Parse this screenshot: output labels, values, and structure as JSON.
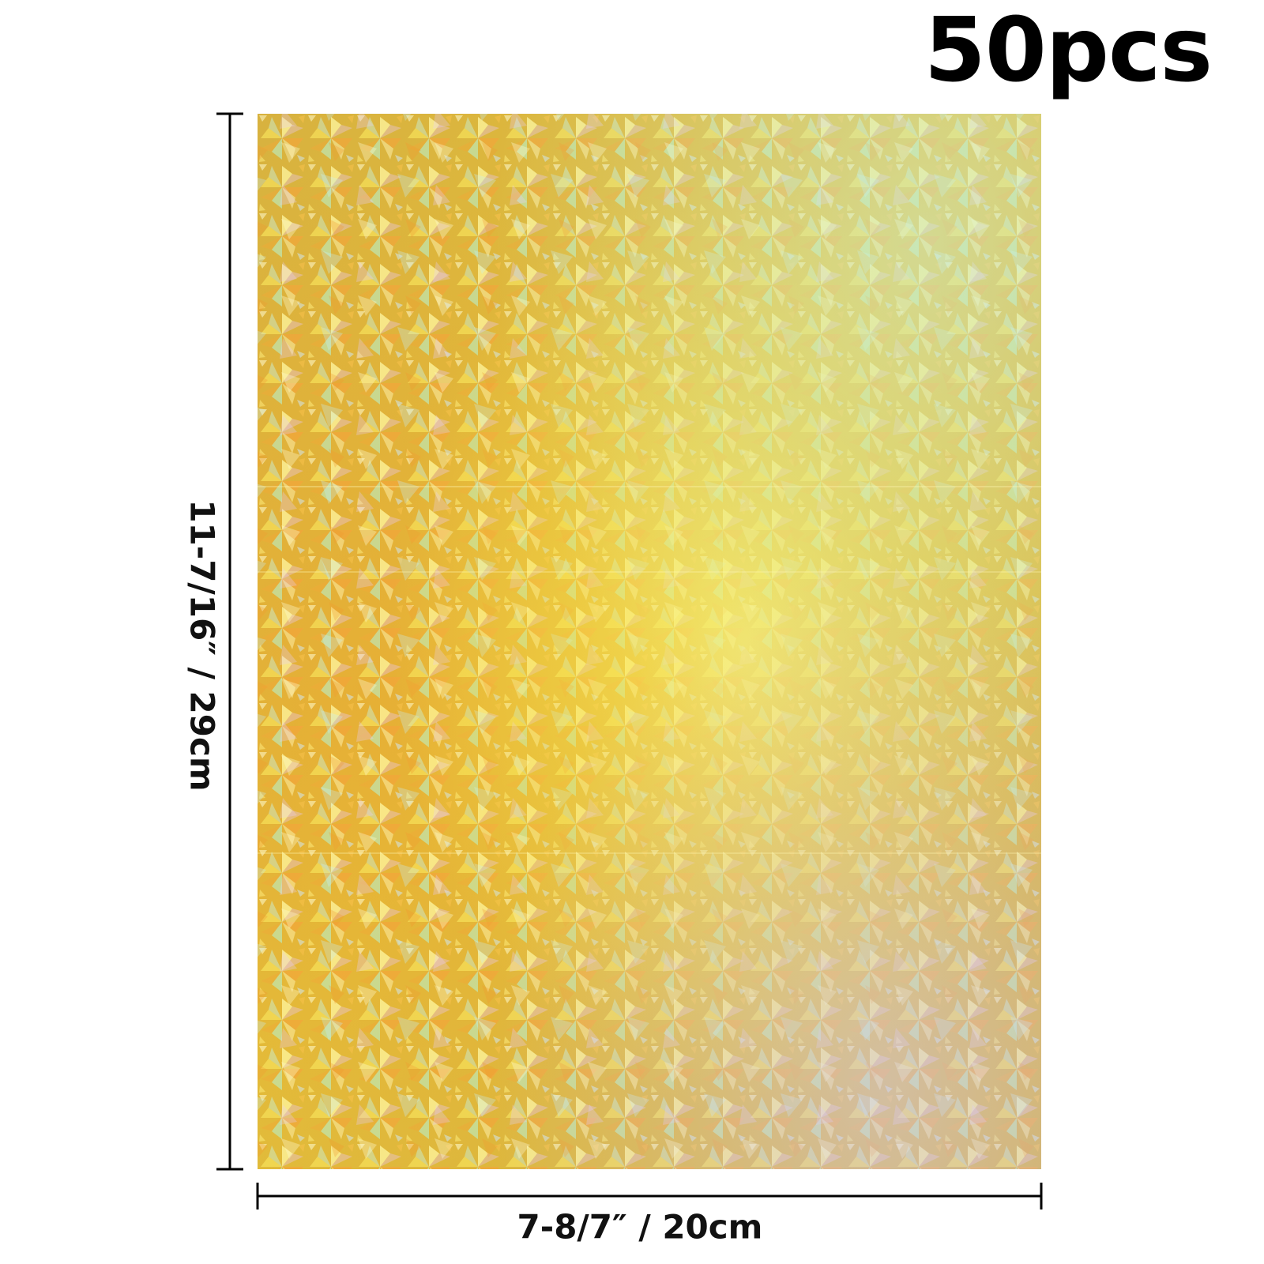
{
  "quantity_label": "50pcs",
  "height_label": "11-7/16″ / 29cm",
  "width_label": "7-8/7″ / 20cm",
  "colors": {
    "background": "#ffffff",
    "text": "#000000",
    "sheet_gold": "#d9b43a"
  }
}
